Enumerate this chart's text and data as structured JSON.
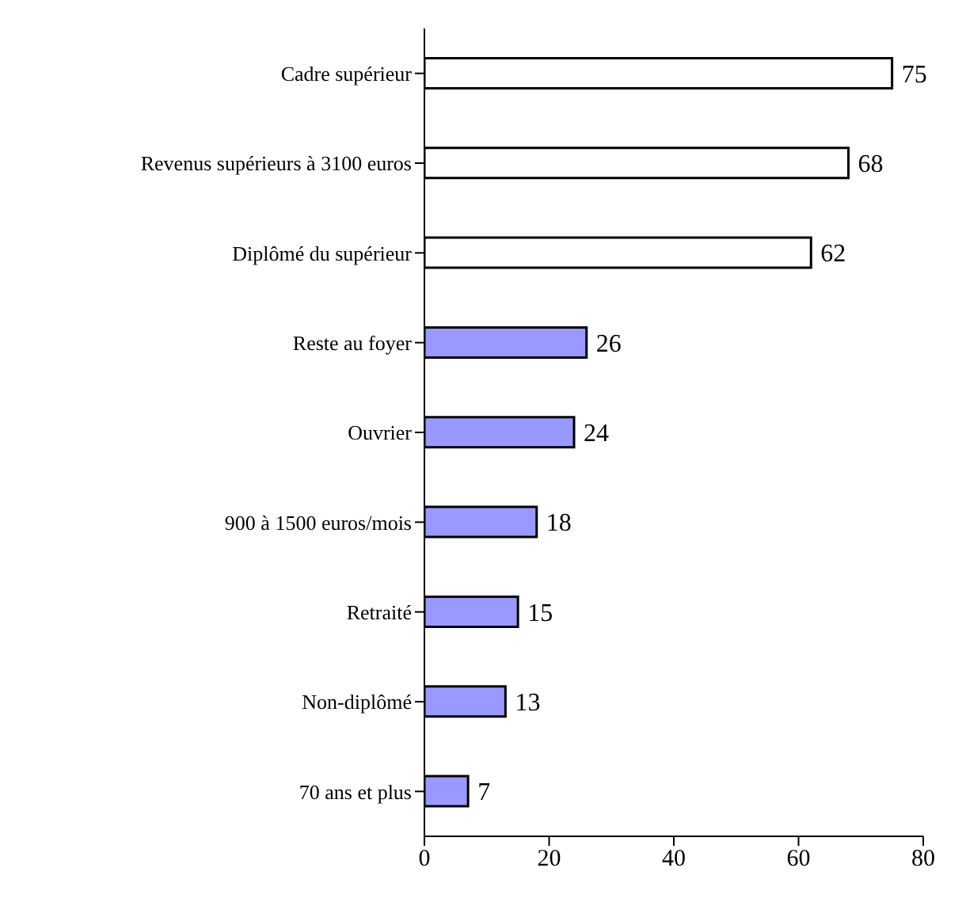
{
  "chart_data": {
    "type": "bar",
    "orientation": "horizontal",
    "categories": [
      "Cadre supérieur",
      "Revenus supérieurs à 3100 euros",
      "Diplômé du supérieur",
      "Reste au foyer",
      "Ouvrier",
      "900 à 1500 euros/mois",
      "Retraité",
      "Non-diplômé",
      "70 ans et plus"
    ],
    "values": [
      75,
      68,
      62,
      26,
      24,
      18,
      15,
      13,
      7
    ],
    "colors": [
      "#ffffff",
      "#ffffff",
      "#ffffff",
      "#9999ff",
      "#9999ff",
      "#9999ff",
      "#9999ff",
      "#9999ff",
      "#9999ff"
    ],
    "xlim": [
      0,
      80
    ],
    "xticks": [
      0,
      20,
      40,
      60,
      80
    ],
    "grid": false,
    "data_labels": true
  }
}
